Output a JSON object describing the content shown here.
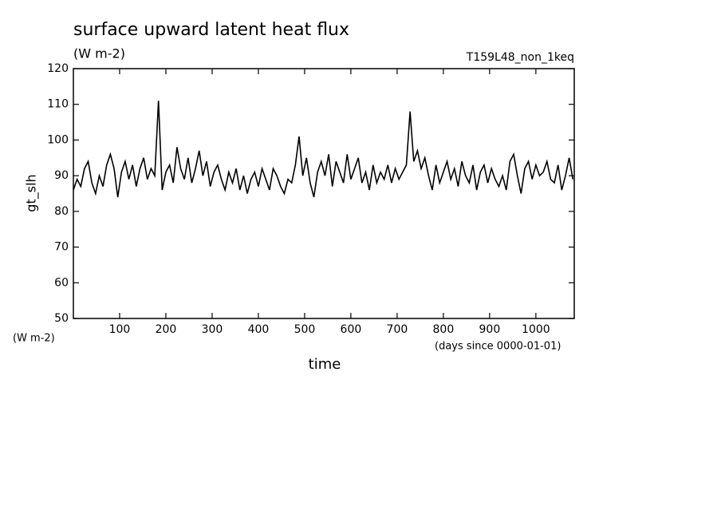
{
  "chart_data": {
    "type": "line",
    "title": "surface upward latent heat flux",
    "subtitle": "(W m-2)",
    "annotation": "T159L48_non_1keq",
    "y_label": "gt_slh",
    "y_unit_label": "(W m-2)",
    "x_label": "time",
    "x_unit_label": "(days since 0000-01-01)",
    "xlim": [
      0,
      1083
    ],
    "ylim": [
      50,
      120
    ],
    "xticks": [
      100,
      200,
      300,
      400,
      500,
      600,
      700,
      800,
      900,
      1000
    ],
    "yticks": [
      50,
      60,
      70,
      80,
      90,
      100,
      110,
      120
    ],
    "series": [
      {
        "color": "#000000",
        "x": [
          0,
          8,
          16,
          24,
          32,
          40,
          48,
          56,
          64,
          72,
          80,
          88,
          96,
          104,
          112,
          120,
          128,
          136,
          144,
          152,
          160,
          168,
          176,
          184,
          192,
          200,
          208,
          216,
          224,
          232,
          240,
          248,
          256,
          264,
          272,
          280,
          288,
          296,
          304,
          312,
          320,
          328,
          336,
          344,
          352,
          360,
          368,
          376,
          384,
          392,
          400,
          408,
          416,
          424,
          432,
          440,
          448,
          456,
          464,
          472,
          480,
          488,
          496,
          504,
          512,
          520,
          528,
          536,
          544,
          552,
          560,
          568,
          576,
          584,
          592,
          600,
          608,
          616,
          624,
          632,
          640,
          648,
          656,
          664,
          672,
          680,
          688,
          696,
          704,
          712,
          720,
          728,
          736,
          744,
          752,
          760,
          768,
          776,
          784,
          792,
          800,
          808,
          816,
          824,
          832,
          840,
          848,
          856,
          864,
          872,
          880,
          888,
          896,
          904,
          912,
          920,
          928,
          936,
          944,
          952,
          960,
          968,
          976,
          984,
          992,
          1000,
          1008,
          1016,
          1024,
          1032,
          1040,
          1048,
          1056,
          1064,
          1072,
          1080
        ],
        "values": [
          86,
          89,
          87,
          92,
          94,
          88,
          85,
          90,
          87,
          93,
          96,
          92,
          84,
          91,
          94,
          89,
          93,
          87,
          92,
          95,
          89,
          92,
          90,
          111,
          86,
          91,
          93,
          88,
          98,
          92,
          89,
          95,
          88,
          92,
          97,
          90,
          94,
          87,
          91,
          93,
          89,
          86,
          91,
          88,
          92,
          86,
          90,
          85,
          89,
          91,
          87,
          92,
          89,
          86,
          92,
          90,
          87,
          85,
          89,
          88,
          93,
          101,
          90,
          95,
          88,
          84,
          91,
          94,
          90,
          96,
          87,
          94,
          91,
          88,
          96,
          89,
          92,
          95,
          88,
          91,
          86,
          93,
          88,
          91,
          89,
          93,
          88,
          92,
          89,
          91,
          93,
          108,
          94,
          97,
          92,
          95,
          90,
          86,
          93,
          88,
          91,
          94,
          89,
          92,
          87,
          94,
          90,
          88,
          93,
          86,
          91,
          93,
          88,
          92,
          89,
          87,
          90,
          86,
          94,
          96,
          90,
          85,
          92,
          94,
          89,
          93,
          90,
          91,
          94,
          89,
          88,
          93,
          86,
          90,
          95,
          89
        ]
      }
    ]
  }
}
